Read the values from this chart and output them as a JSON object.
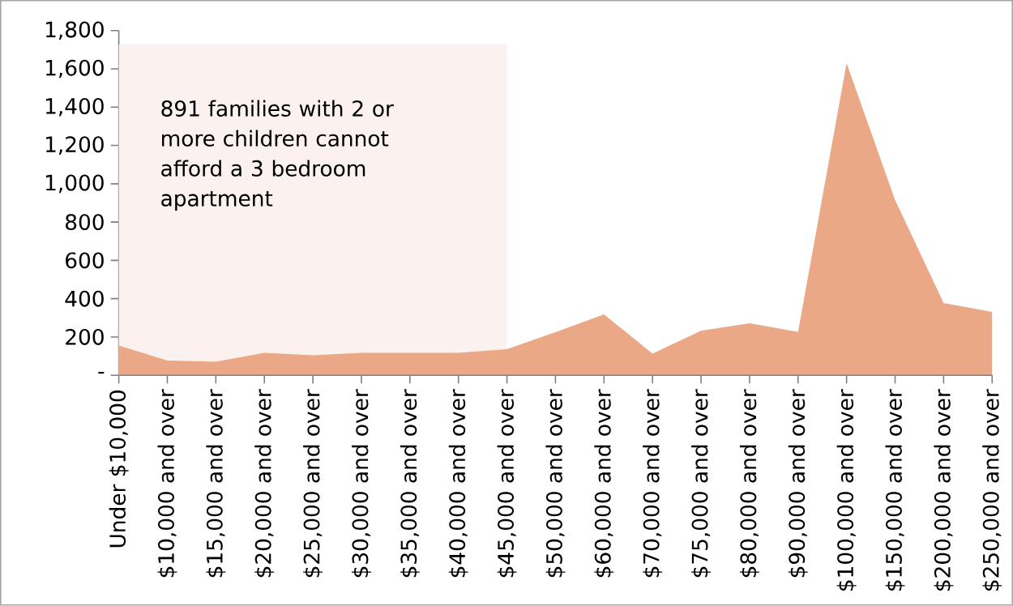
{
  "chart_data": {
    "type": "area",
    "categories": [
      "Under $10,000",
      "$10,000 and over",
      "$15,000 and over",
      "$20,000 and over",
      "$25,000 and over",
      "$30,000 and over",
      "$35,000 and over",
      "$40,000 and over",
      "$45,000 and over",
      "$50,000 and over",
      "$60,000 and over",
      "$70,000 and over",
      "$75,000 and over",
      "$80,000 and over",
      "$90,000 and over",
      "$100,000 and over",
      "$150,000 and over",
      "$200,000 and over",
      "$250,000 and over"
    ],
    "values": [
      155,
      77,
      71,
      117,
      104,
      117,
      117,
      117,
      136,
      225,
      318,
      113,
      232,
      272,
      226,
      1630,
      915,
      377,
      331
    ],
    "color": "#eaa886",
    "ylim": [
      0,
      1800
    ],
    "yticks": [
      {
        "value": 0,
        "label": "-"
      },
      200,
      400,
      600,
      800,
      {
        "value": 1000,
        "label": "1,000"
      },
      {
        "value": 1200,
        "label": "1,200"
      },
      {
        "value": 1400,
        "label": "1,400"
      },
      {
        "value": 1600,
        "label": "1,600"
      },
      {
        "value": 1800,
        "label": "1,800"
      }
    ],
    "bands": [
      {
        "axis": "x",
        "from": "Under $10,000",
        "to": "$45,000 and over",
        "label": "891 families with 2 or more children cannot afford a 3 bedroom apartment",
        "color": "#fbf1ee"
      }
    ],
    "grid": false
  }
}
